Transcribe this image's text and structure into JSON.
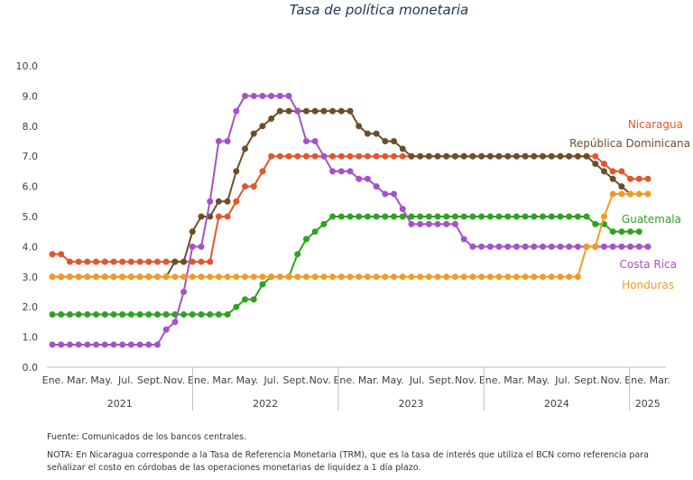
{
  "chart_data": {
    "type": "line",
    "title": "Tasa de política monetaria",
    "ylim": [
      0,
      10
    ],
    "yticks": [
      "0.0",
      "1.0",
      "2.0",
      "3.0",
      "4.0",
      "5.0",
      "6.0",
      "7.0",
      "8.0",
      "9.0",
      "10.0"
    ],
    "month_ticks": [
      "Ene.",
      "Mar.",
      "May.",
      "Jul.",
      "Sept.",
      "Nov.",
      "Ene.",
      "Mar.",
      "May.",
      "Jul.",
      "Sept.",
      "Nov.",
      "Ene.",
      "Mar.",
      "May.",
      "Jul.",
      "Sept.",
      "Nov.",
      "Ene.",
      "Mar.",
      "May.",
      "Jul.",
      "Sept.",
      "Nov.",
      "Ene.",
      "Mar."
    ],
    "years": [
      "2021",
      "2022",
      "2023",
      "2024",
      "2025"
    ],
    "grid": false,
    "series": [
      {
        "name": "Nicaragua",
        "color": "#e2562c",
        "values": [
          3.75,
          3.75,
          3.5,
          3.5,
          3.5,
          3.5,
          3.5,
          3.5,
          3.5,
          3.5,
          3.5,
          3.5,
          3.5,
          3.5,
          3.5,
          3.5,
          3.5,
          3.5,
          3.5,
          5.0,
          5.0,
          5.5,
          6.0,
          6.0,
          6.5,
          7.0,
          7.0,
          7.0,
          7.0,
          7.0,
          7.0,
          7.0,
          7.0,
          7.0,
          7.0,
          7.0,
          7.0,
          7.0,
          7.0,
          7.0,
          7.0,
          7.0,
          7.0,
          7.0,
          7.0,
          7.0,
          7.0,
          7.0,
          7.0,
          7.0,
          7.0,
          7.0,
          7.0,
          7.0,
          7.0,
          7.0,
          7.0,
          7.0,
          7.0,
          7.0,
          7.0,
          7.0,
          7.0,
          6.75,
          6.5,
          6.5,
          6.25,
          6.25,
          6.25
        ]
      },
      {
        "name": "República Dominicana",
        "color": "#6b4f2a",
        "values": [
          3.0,
          3.0,
          3.0,
          3.0,
          3.0,
          3.0,
          3.0,
          3.0,
          3.0,
          3.0,
          3.0,
          3.0,
          3.0,
          3.0,
          3.5,
          3.5,
          4.5,
          5.0,
          5.0,
          5.5,
          5.5,
          6.5,
          7.25,
          7.75,
          8.0,
          8.25,
          8.5,
          8.5,
          8.5,
          8.5,
          8.5,
          8.5,
          8.5,
          8.5,
          8.5,
          8.0,
          7.75,
          7.75,
          7.5,
          7.5,
          7.25,
          7.0,
          7.0,
          7.0,
          7.0,
          7.0,
          7.0,
          7.0,
          7.0,
          7.0,
          7.0,
          7.0,
          7.0,
          7.0,
          7.0,
          7.0,
          7.0,
          7.0,
          7.0,
          7.0,
          7.0,
          7.0,
          6.75,
          6.5,
          6.25,
          6.0,
          5.75,
          null,
          null
        ]
      },
      {
        "name": "Guatemala",
        "color": "#2ea321",
        "values": [
          1.75,
          1.75,
          1.75,
          1.75,
          1.75,
          1.75,
          1.75,
          1.75,
          1.75,
          1.75,
          1.75,
          1.75,
          1.75,
          1.75,
          1.75,
          1.75,
          1.75,
          1.75,
          1.75,
          1.75,
          1.75,
          2.0,
          2.25,
          2.25,
          2.75,
          3.0,
          3.0,
          3.0,
          3.75,
          4.25,
          4.5,
          4.75,
          5.0,
          5.0,
          5.0,
          5.0,
          5.0,
          5.0,
          5.0,
          5.0,
          5.0,
          5.0,
          5.0,
          5.0,
          5.0,
          5.0,
          5.0,
          5.0,
          5.0,
          5.0,
          5.0,
          5.0,
          5.0,
          5.0,
          5.0,
          5.0,
          5.0,
          5.0,
          5.0,
          5.0,
          5.0,
          5.0,
          4.75,
          4.75,
          4.5,
          4.5,
          4.5,
          4.5,
          null
        ]
      },
      {
        "name": "Costa Rica",
        "color": "#a552c9",
        "values": [
          0.75,
          0.75,
          0.75,
          0.75,
          0.75,
          0.75,
          0.75,
          0.75,
          0.75,
          0.75,
          0.75,
          0.75,
          0.75,
          1.25,
          1.5,
          2.5,
          4.0,
          4.0,
          5.5,
          7.5,
          7.5,
          8.5,
          9.0,
          9.0,
          9.0,
          9.0,
          9.0,
          9.0,
          8.5,
          7.5,
          7.5,
          7.0,
          6.5,
          6.5,
          6.5,
          6.25,
          6.25,
          6.0,
          5.75,
          5.75,
          5.25,
          4.75,
          4.75,
          4.75,
          4.75,
          4.75,
          4.75,
          4.25,
          4.0,
          4.0,
          4.0,
          4.0,
          4.0,
          4.0,
          4.0,
          4.0,
          4.0,
          4.0,
          4.0,
          4.0,
          4.0,
          4.0,
          4.0,
          4.0,
          4.0,
          4.0,
          4.0,
          4.0,
          4.0
        ]
      },
      {
        "name": "Honduras",
        "color": "#f39a24",
        "values": [
          3.0,
          3.0,
          3.0,
          3.0,
          3.0,
          3.0,
          3.0,
          3.0,
          3.0,
          3.0,
          3.0,
          3.0,
          3.0,
          3.0,
          3.0,
          3.0,
          3.0,
          3.0,
          3.0,
          3.0,
          3.0,
          3.0,
          3.0,
          3.0,
          3.0,
          3.0,
          3.0,
          3.0,
          3.0,
          3.0,
          3.0,
          3.0,
          3.0,
          3.0,
          3.0,
          3.0,
          3.0,
          3.0,
          3.0,
          3.0,
          3.0,
          3.0,
          3.0,
          3.0,
          3.0,
          3.0,
          3.0,
          3.0,
          3.0,
          3.0,
          3.0,
          3.0,
          3.0,
          3.0,
          3.0,
          3.0,
          3.0,
          3.0,
          3.0,
          3.0,
          3.0,
          4.0,
          4.0,
          5.0,
          5.75,
          5.75,
          5.75,
          5.75,
          5.75
        ]
      }
    ]
  },
  "notes": {
    "source": "Fuente: Comunicados de los bancos centrales.",
    "note": "NOTA: En Nicaragua corresponde a la Tasa de Referencia Monetaria (TRM), que es la tasa de interés que utiliza el BCN como referencia para señalizar el costo en córdobas de las operaciones monetarias de liquidez a 1 día plazo."
  }
}
